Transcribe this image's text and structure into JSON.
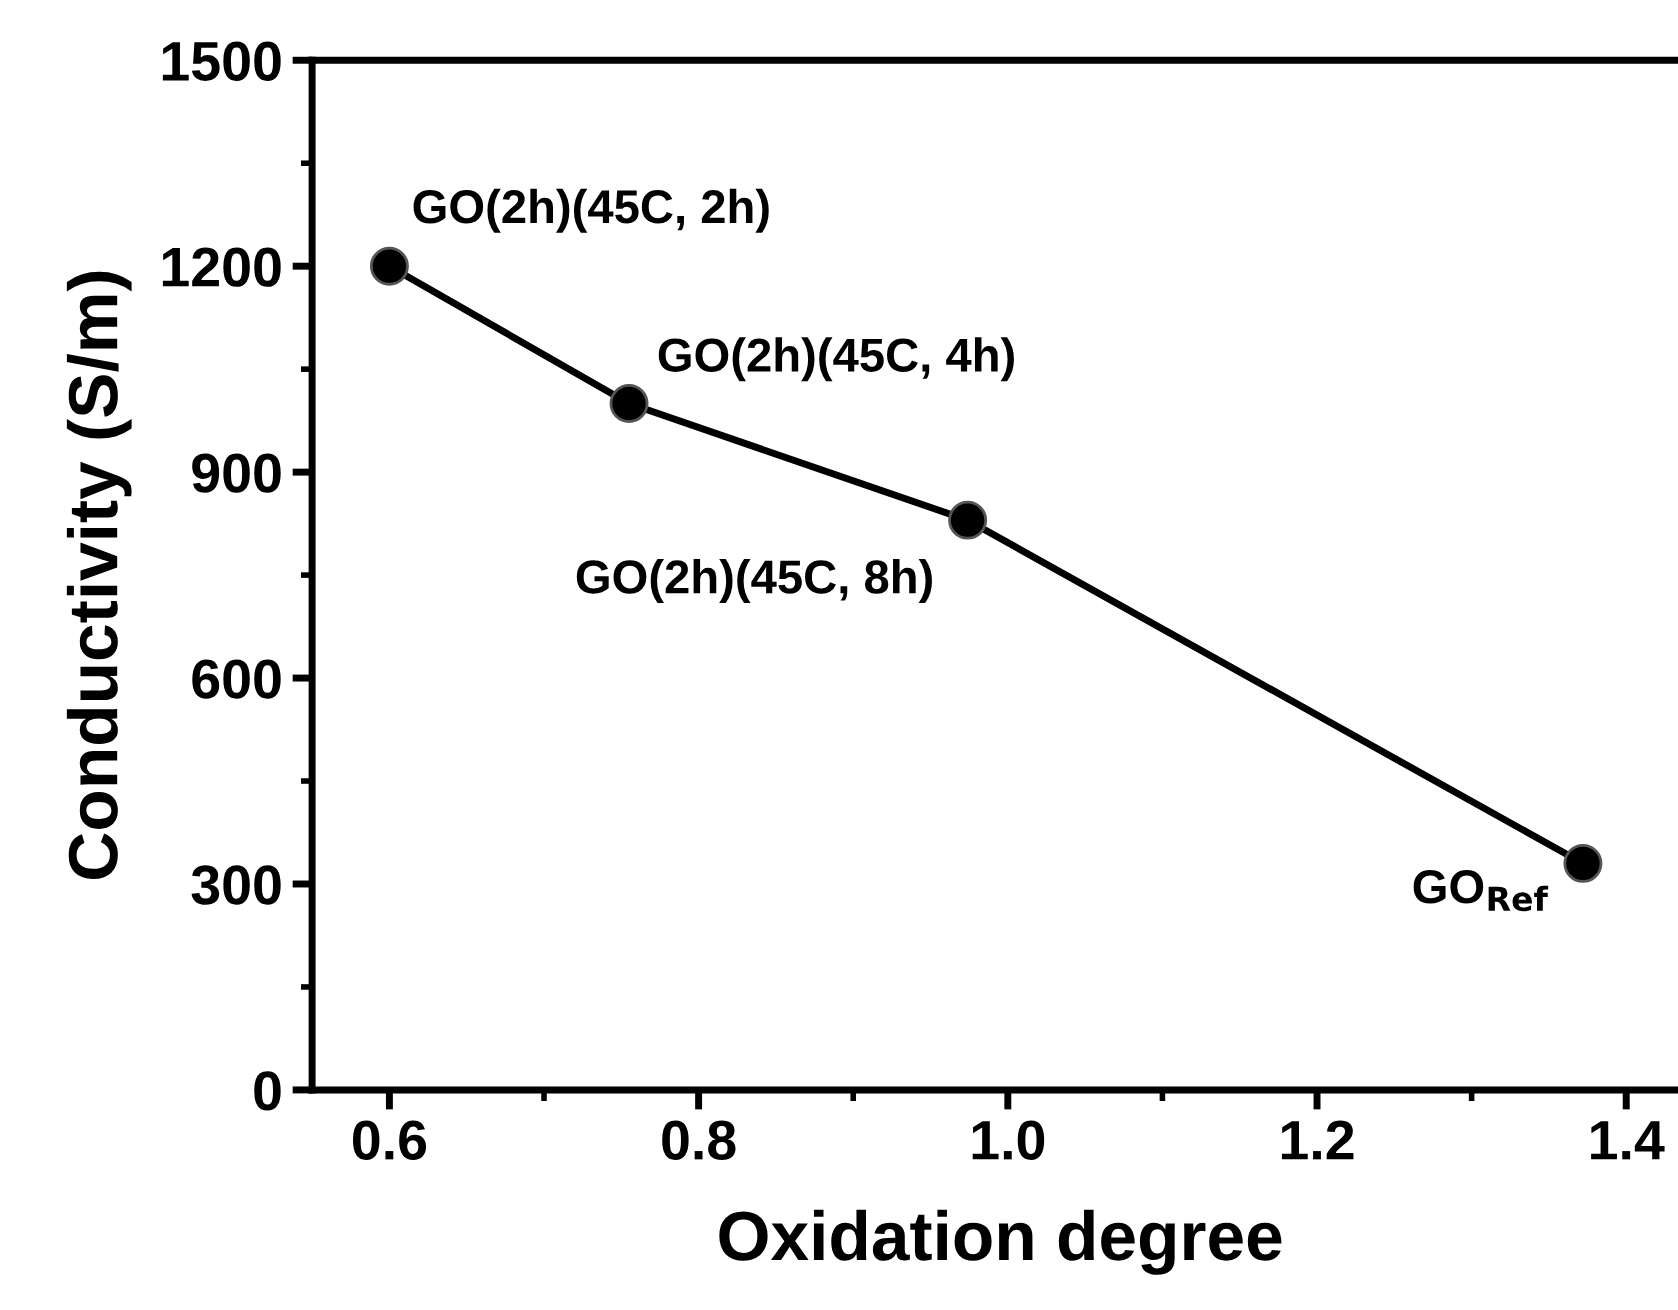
{
  "chart_data": {
    "type": "line",
    "xlabel": "Oxidation degree",
    "ylabel": "Conductivity (S/m)",
    "x": [
      0.6,
      0.755,
      0.974,
      1.372
    ],
    "series": [
      {
        "color": "#000000",
        "values": [
          1200,
          1000,
          830,
          330
        ]
      }
    ],
    "marker": "circle",
    "line_style": "solid",
    "grid": false,
    "legend": false,
    "xlim": [
      0.55,
      1.44
    ],
    "xticks": [
      0.6,
      0.8,
      {
        "value": 1.0,
        "label": "1.0"
      },
      1.2,
      1.4
    ],
    "ylim": [
      0,
      1500
    ],
    "yticks": [
      0,
      300,
      600,
      900,
      1200,
      1500
    ],
    "annotations": [
      {
        "text": "GO(2h)(45C, 2h)",
        "x": 0.6,
        "y": 1200
      },
      {
        "text": "GO(2h)(45C, 4h)",
        "x": 0.755,
        "y": 1000
      },
      {
        "text": "GO(2h)(45C, 8h)",
        "x": 0.974,
        "y": 830
      },
      {
        "text": "GO$_{Ref}$",
        "x": 1.372,
        "y": 330
      }
    ]
  }
}
